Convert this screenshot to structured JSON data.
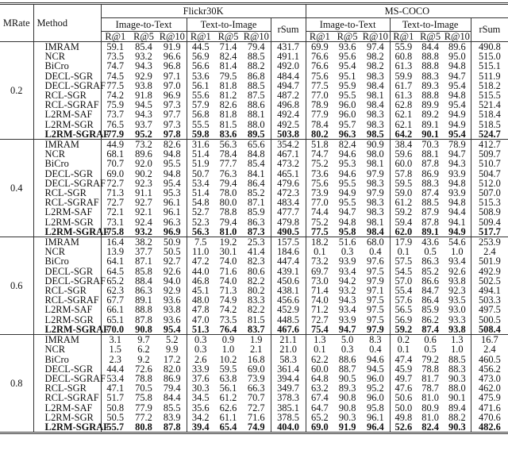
{
  "chart_data": {
    "type": "table",
    "headers": {
      "mrate": "MRate",
      "method": "Method",
      "datasets": [
        "Flickr30K",
        "MS-COCO"
      ],
      "directions": [
        "Image-to-Text",
        "Text-to-Image"
      ],
      "metrics": [
        "R@1",
        "R@5",
        "R@10"
      ],
      "rsum": "rSum"
    },
    "blocks": [
      {
        "mrate": "0.2",
        "rows": [
          {
            "method": "IMRAM",
            "values": [
              "59.1",
              "85.4",
              "91.9",
              "44.5",
              "71.4",
              "79.4",
              "431.7",
              "69.9",
              "93.6",
              "97.4",
              "55.9",
              "84.4",
              "89.6",
              "490.8"
            ]
          },
          {
            "method": "NCR",
            "values": [
              "73.5",
              "93.2",
              "96.6",
              "56.9",
              "82.4",
              "88.5",
              "491.1",
              "76.6",
              "95.6",
              "98.2",
              "60.8",
              "88.8",
              "95.0",
              "515.0"
            ]
          },
          {
            "method": "BiCro",
            "values": [
              "74.7",
              "94.3",
              "96.8",
              "56.6",
              "81.4",
              "88.2",
              "492.0",
              "76.6",
              "95.4",
              "98.2",
              "61.3",
              "88.8",
              "94.8",
              "515.1"
            ]
          },
          {
            "method": "DECL-SGR",
            "values": [
              "74.5",
              "92.9",
              "97.1",
              "53.6",
              "79.5",
              "86.8",
              "484.4",
              "75.6",
              "95.1",
              "98.3",
              "59.9",
              "88.3",
              "94.7",
              "511.9"
            ]
          },
          {
            "method": "DECL-SGRAF",
            "values": [
              "77.5",
              "93.8",
              "97.0",
              "56.1",
              "81.8",
              "88.5",
              "494.7",
              "77.5",
              "95.9",
              "98.4",
              "61.7",
              "89.3",
              "95.4",
              "518.2"
            ]
          },
          {
            "method": "RCL-SGR",
            "values": [
              "74.2",
              "91.8",
              "96.9",
              "55.6",
              "81.2",
              "87.5",
              "487.2",
              "77.0",
              "95.5",
              "98.1",
              "61.3",
              "88.8",
              "94.8",
              "515.5"
            ]
          },
          {
            "method": "RCL-SGRAF",
            "values": [
              "75.9",
              "94.5",
              "97.3",
              "57.9",
              "82.6",
              "88.6",
              "496.8",
              "78.9",
              "96.0",
              "98.4",
              "62.8",
              "89.9",
              "95.4",
              "521.4"
            ]
          },
          {
            "method": "L2RM-SAF",
            "values": [
              "73.7",
              "94.3",
              "97.7",
              "56.8",
              "81.8",
              "88.1",
              "492.4",
              "77.9",
              "96.0",
              "98.3",
              "62.1",
              "89.2",
              "94.9",
              "518.4"
            ]
          },
          {
            "method": "L2RM-SGR",
            "values": [
              "76.5",
              "93.7",
              "97.3",
              "55.5",
              "81.5",
              "88.0",
              "492.5",
              "78.4",
              "95.7",
              "98.3",
              "62.1",
              "89.1",
              "94.9",
              "518.5"
            ]
          },
          {
            "method": "L2RM-SGRAF",
            "values": [
              "77.9",
              "95.2",
              "97.8",
              "59.8",
              "83.6",
              "89.5",
              "503.8",
              "80.2",
              "96.3",
              "98.5",
              "64.2",
              "90.1",
              "95.4",
              "524.7"
            ]
          }
        ]
      },
      {
        "mrate": "0.4",
        "rows": [
          {
            "method": "IMRAM",
            "values": [
              "44.9",
              "73.2",
              "82.6",
              "31.6",
              "56.3",
              "65.6",
              "354.2",
              "51.8",
              "82.4",
              "90.9",
              "38.4",
              "70.3",
              "78.9",
              "412.7"
            ]
          },
          {
            "method": "NCR",
            "values": [
              "68.1",
              "89.6",
              "94.8",
              "51.4",
              "78.4",
              "84.8",
              "467.1",
              "74.7",
              "94.6",
              "98.0",
              "59.6",
              "88.1",
              "94.7",
              "509.7"
            ]
          },
          {
            "method": "BiCro",
            "values": [
              "70.7",
              "92.0",
              "95.5",
              "51.9",
              "77.7",
              "85.4",
              "473.2",
              "75.2",
              "95.3",
              "98.1",
              "60.0",
              "87.8",
              "94.3",
              "510.7"
            ]
          },
          {
            "method": "DECL-SGR",
            "values": [
              "69.0",
              "90.2",
              "94.8",
              "50.7",
              "76.3",
              "84.1",
              "465.1",
              "73.6",
              "94.6",
              "97.9",
              "57.8",
              "86.9",
              "93.9",
              "504.7"
            ]
          },
          {
            "method": "DECL-SGRAF",
            "values": [
              "72.7",
              "92.3",
              "95.4",
              "53.4",
              "79.4",
              "86.4",
              "479.6",
              "75.6",
              "95.5",
              "98.3",
              "59.5",
              "88.3",
              "94.8",
              "512.0"
            ]
          },
          {
            "method": "RCL-SGR",
            "values": [
              "71.3",
              "91.1",
              "95.3",
              "51.4",
              "78.0",
              "85.2",
              "472.3",
              "73.9",
              "94.9",
              "97.9",
              "59.0",
              "87.4",
              "93.9",
              "507.0"
            ]
          },
          {
            "method": "RCL-SGRAF",
            "values": [
              "72.7",
              "92.7",
              "96.1",
              "54.8",
              "80.0",
              "87.1",
              "483.4",
              "77.0",
              "95.5",
              "98.3",
              "61.2",
              "88.5",
              "94.8",
              "515.3"
            ]
          },
          {
            "method": "L2RM-SAF",
            "values": [
              "72.1",
              "92.1",
              "96.1",
              "52.7",
              "78.8",
              "85.9",
              "477.7",
              "74.4",
              "94.7",
              "98.3",
              "59.2",
              "87.9",
              "94.4",
              "508.9"
            ]
          },
          {
            "method": "L2RM-SGR",
            "values": [
              "73.1",
              "92.4",
              "96.3",
              "52.3",
              "79.4",
              "86.3",
              "479.8",
              "75.2",
              "94.8",
              "98.1",
              "59.4",
              "87.8",
              "94.1",
              "509.4"
            ]
          },
          {
            "method": "L2RM-SGRAF",
            "values": [
              "75.8",
              "93.2",
              "96.9",
              "56.3",
              "81.0",
              "87.3",
              "490.5",
              "77.5",
              "95.8",
              "98.4",
              "62.0",
              "89.1",
              "94.9",
              "517.7"
            ]
          }
        ]
      },
      {
        "mrate": "0.6",
        "rows": [
          {
            "method": "IMRAM",
            "values": [
              "16.4",
              "38.2",
              "50.9",
              "7.5",
              "19.2",
              "25.3",
              "157.5",
              "18.2",
              "51.6",
              "68.0",
              "17.9",
              "43.6",
              "54.6",
              "253.9"
            ]
          },
          {
            "method": "NCR",
            "values": [
              "13.9",
              "37.7",
              "50.5",
              "11.0",
              "30.1",
              "41.4",
              "184.6",
              "0.1",
              "0.3",
              "0.4",
              "0.1",
              "0.5",
              "1.0",
              "2.4"
            ]
          },
          {
            "method": "BiCro",
            "values": [
              "64.1",
              "87.1",
              "92.7",
              "47.2",
              "74.0",
              "82.3",
              "447.4",
              "73.2",
              "93.9",
              "97.6",
              "57.5",
              "86.3",
              "93.4",
              "501.9"
            ]
          },
          {
            "method": "DECL-SGR",
            "values": [
              "64.5",
              "85.8",
              "92.6",
              "44.0",
              "71.6",
              "80.6",
              "439.1",
              "69.7",
              "93.4",
              "97.5",
              "54.5",
              "85.2",
              "92.6",
              "492.9"
            ]
          },
          {
            "method": "DECL-SGRAF",
            "values": [
              "65.2",
              "88.4",
              "94.0",
              "46.8",
              "74.0",
              "82.2",
              "450.6",
              "73.0",
              "94.2",
              "97.9",
              "57.0",
              "86.6",
              "93.8",
              "502.5"
            ]
          },
          {
            "method": "RCL-SGR",
            "values": [
              "62.3",
              "86.3",
              "92.9",
              "45.1",
              "71.3",
              "80.2",
              "438.1",
              "71.4",
              "93.2",
              "97.1",
              "55.4",
              "84.7",
              "92.3",
              "494.1"
            ]
          },
          {
            "method": "RCL-SGRAF",
            "values": [
              "67.7",
              "89.1",
              "93.6",
              "48.0",
              "74.9",
              "83.3",
              "456.6",
              "74.0",
              "94.3",
              "97.5",
              "57.6",
              "86.4",
              "93.5",
              "503.3"
            ]
          },
          {
            "method": "L2RM-SAF",
            "values": [
              "66.1",
              "88.8",
              "93.8",
              "47.8",
              "74.2",
              "82.2",
              "452.9",
              "71.2",
              "93.4",
              "97.5",
              "56.5",
              "85.9",
              "93.0",
              "497.5"
            ]
          },
          {
            "method": "L2RM-SGR",
            "values": [
              "65.1",
              "87.8",
              "93.6",
              "47.0",
              "73.5",
              "81.5",
              "448.5",
              "72.7",
              "93.9",
              "97.5",
              "56.9",
              "86.2",
              "93.3",
              "500.5"
            ]
          },
          {
            "method": "L2RM-SGRAF",
            "values": [
              "70.0",
              "90.8",
              "95.4",
              "51.3",
              "76.4",
              "83.7",
              "467.6",
              "75.4",
              "94.7",
              "97.9",
              "59.2",
              "87.4",
              "93.8",
              "508.4"
            ]
          }
        ]
      },
      {
        "mrate": "0.8",
        "rows": [
          {
            "method": "IMRAM",
            "values": [
              "3.1",
              "9.7",
              "5.2",
              "0.3",
              "0.9",
              "1.9",
              "21.1",
              "1.3",
              "5.0",
              "8.3",
              "0.2",
              "0.6",
              "1.3",
              "16.7"
            ]
          },
          {
            "method": "NCR",
            "values": [
              "1.5",
              "6.2",
              "9.9",
              "0.3",
              "1.0",
              "2.1",
              "21.0",
              "0.1",
              "0.3",
              "0.4",
              "0.1",
              "0.5",
              "1.0",
              "2.4"
            ]
          },
          {
            "method": "BiCro",
            "values": [
              "2.3",
              "9.2",
              "17.2",
              "2.6",
              "10.2",
              "16.8",
              "58.3",
              "62.2",
              "88.6",
              "94.6",
              "47.4",
              "79.2",
              "88.5",
              "460.5"
            ]
          },
          {
            "method": "DECL-SGR",
            "values": [
              "44.4",
              "72.6",
              "82.0",
              "33.9",
              "59.5",
              "69.0",
              "361.4",
              "60.0",
              "88.7",
              "94.5",
              "45.9",
              "78.8",
              "88.3",
              "456.2"
            ]
          },
          {
            "method": "DECL-SGRAF",
            "values": [
              "53.4",
              "78.8",
              "86.9",
              "37.6",
              "63.8",
              "73.9",
              "394.4",
              "64.8",
              "90.5",
              "96.0",
              "49.7",
              "81.7",
              "90.3",
              "473.0"
            ]
          },
          {
            "method": "RCL-SGR",
            "values": [
              "47.1",
              "70.5",
              "79.4",
              "30.3",
              "56.1",
              "66.3",
              "349.7",
              "63.2",
              "89.3",
              "95.2",
              "47.6",
              "78.7",
              "88.0",
              "462.0"
            ]
          },
          {
            "method": "RCL-SGRAF",
            "values": [
              "51.7",
              "75.8",
              "84.4",
              "34.5",
              "61.2",
              "70.7",
              "378.3",
              "67.4",
              "90.8",
              "96.0",
              "50.6",
              "81.0",
              "90.1",
              "475.9"
            ]
          },
          {
            "method": "L2RM-SAF",
            "values": [
              "50.8",
              "77.9",
              "85.5",
              "35.6",
              "62.6",
              "72.7",
              "385.1",
              "64.7",
              "90.8",
              "95.8",
              "50.0",
              "80.9",
              "89.4",
              "471.6"
            ]
          },
          {
            "method": "L2RM-SGR",
            "values": [
              "50.5",
              "77.2",
              "83.9",
              "34.2",
              "61.1",
              "71.6",
              "378.5",
              "65.2",
              "90.3",
              "96.1",
              "49.8",
              "81.0",
              "88.2",
              "470.6"
            ]
          },
          {
            "method": "L2RM-SGRAF",
            "values": [
              "55.7",
              "80.8",
              "87.8",
              "39.4",
              "65.4",
              "74.9",
              "404.0",
              "69.0",
              "91.9",
              "96.4",
              "52.6",
              "82.4",
              "90.3",
              "482.6"
            ]
          }
        ]
      }
    ],
    "bold_rows": [
      "L2RM-SGRAF"
    ]
  }
}
